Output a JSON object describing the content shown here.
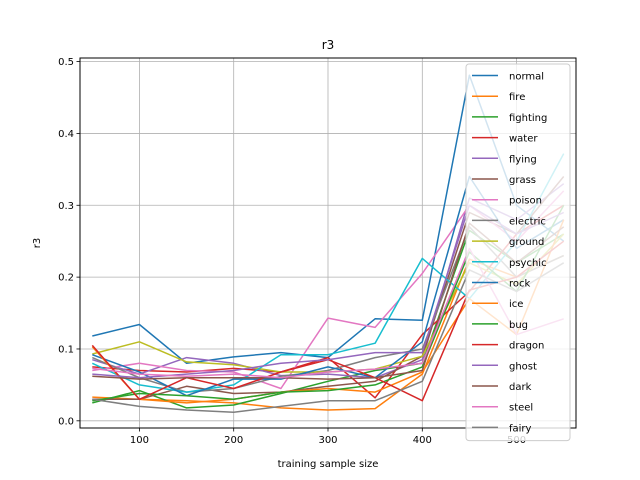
{
  "chart_data": {
    "type": "line",
    "title": "r3",
    "xlabel": "training sample size",
    "ylabel": "r3",
    "xlim": [
      37,
      563
    ],
    "ylim": [
      -0.01,
      0.505
    ],
    "xticks": [
      100,
      200,
      300,
      400,
      500
    ],
    "yticks": [
      0.0,
      0.1,
      0.2,
      0.3,
      0.4,
      0.5
    ],
    "xtick_labels": [
      "100",
      "200",
      "300",
      "400",
      "500"
    ],
    "ytick_labels": [
      "0.0",
      "0.1",
      "0.2",
      "0.3",
      "0.4",
      "0.5"
    ],
    "grid": true,
    "legend_position": "upper right",
    "x": [
      50,
      100,
      150,
      200,
      250,
      300,
      350,
      400,
      450,
      500,
      550
    ],
    "series": [
      {
        "name": "normal",
        "color": "#1f77b4",
        "values": [
          0.118,
          0.134,
          0.08,
          0.089,
          0.095,
          0.088,
          0.142,
          0.14,
          0.481,
          0.3,
          0.25
        ]
      },
      {
        "name": "fire",
        "color": "#ff7f0e",
        "values": [
          0.033,
          0.03,
          0.028,
          0.025,
          0.018,
          0.015,
          0.017,
          0.065,
          0.225,
          0.2,
          0.23
        ]
      },
      {
        "name": "fighting",
        "color": "#2ca02c",
        "values": [
          0.025,
          0.042,
          0.018,
          0.022,
          0.038,
          0.055,
          0.07,
          0.08,
          0.265,
          0.22,
          0.26
        ]
      },
      {
        "name": "water",
        "color": "#d62728",
        "values": [
          0.075,
          0.07,
          0.068,
          0.073,
          0.068,
          0.088,
          0.032,
          0.12,
          0.18,
          0.26,
          0.3
        ]
      },
      {
        "name": "flying",
        "color": "#9467bd",
        "values": [
          0.085,
          0.065,
          0.088,
          0.08,
          0.063,
          0.065,
          0.06,
          0.085,
          0.31,
          0.28,
          0.33
        ]
      },
      {
        "name": "grass",
        "color": "#8c564b",
        "values": [
          0.03,
          0.03,
          0.048,
          0.038,
          0.04,
          0.048,
          0.055,
          0.09,
          0.29,
          0.26,
          0.34
        ]
      },
      {
        "name": "poison",
        "color": "#e377c2",
        "values": [
          0.07,
          0.08,
          0.07,
          0.068,
          0.045,
          0.143,
          0.13,
          0.205,
          0.3,
          0.25,
          0.32
        ]
      },
      {
        "name": "electric",
        "color": "#7f7f7f",
        "values": [
          0.088,
          0.06,
          0.04,
          0.045,
          0.062,
          0.07,
          0.088,
          0.1,
          0.27,
          0.2,
          0.23
        ]
      },
      {
        "name": "ground",
        "color": "#bcbd22",
        "values": [
          0.093,
          0.11,
          0.082,
          0.078,
          0.068,
          0.068,
          0.072,
          0.09,
          0.22,
          0.19,
          0.26
        ]
      },
      {
        "name": "psychic",
        "color": "#17becf",
        "values": [
          0.08,
          0.05,
          0.04,
          0.05,
          0.092,
          0.092,
          0.108,
          0.226,
          0.17,
          0.25,
          0.372
        ]
      },
      {
        "name": "rock",
        "color": "#1f77b4",
        "values": [
          0.092,
          0.068,
          0.035,
          0.058,
          0.058,
          0.075,
          0.06,
          0.11,
          0.34,
          0.24,
          0.28
        ]
      },
      {
        "name": "ice",
        "color": "#ff7f0e",
        "values": [
          0.103,
          0.03,
          0.025,
          0.03,
          0.04,
          0.045,
          0.04,
          0.068,
          0.17,
          0.12,
          0.28
        ]
      },
      {
        "name": "bug",
        "color": "#2ca02c",
        "values": [
          0.028,
          0.038,
          0.035,
          0.03,
          0.04,
          0.042,
          0.05,
          0.075,
          0.235,
          0.18,
          0.3
        ]
      },
      {
        "name": "dragon",
        "color": "#d62728",
        "values": [
          0.105,
          0.03,
          0.06,
          0.045,
          0.068,
          0.085,
          0.06,
          0.028,
          0.182,
          0.2,
          0.25
        ]
      },
      {
        "name": "ghost",
        "color": "#9467bd",
        "values": [
          0.065,
          0.06,
          0.065,
          0.07,
          0.08,
          0.085,
          0.095,
          0.095,
          0.3,
          0.26,
          0.29
        ]
      },
      {
        "name": "dark",
        "color": "#8c564b",
        "values": [
          0.062,
          0.058,
          0.06,
          0.06,
          0.06,
          0.058,
          0.06,
          0.07,
          0.275,
          0.22,
          0.27
        ]
      },
      {
        "name": "steel",
        "color": "#e377c2",
        "values": [
          0.073,
          0.065,
          0.062,
          0.065,
          0.06,
          0.068,
          0.072,
          0.08,
          0.24,
          0.12,
          0.142
        ]
      },
      {
        "name": "fairy",
        "color": "#7f7f7f",
        "values": [
          0.03,
          0.02,
          0.015,
          0.012,
          0.02,
          0.028,
          0.028,
          0.055,
          0.21,
          0.18,
          0.22
        ]
      }
    ]
  }
}
